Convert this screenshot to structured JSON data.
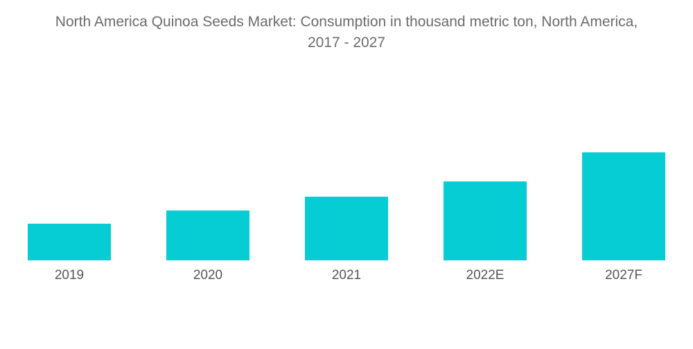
{
  "header": {
    "title_line1": "North America Quinoa Seeds Market: Consumption in thousand metric ton, North America,",
    "title_line2": "2017 - 2027"
  },
  "colors": {
    "bar": "#06CDD4",
    "title_text": "#6B6B6B",
    "label_text": "#555555",
    "background": "#FFFFFF"
  },
  "chart_data": {
    "type": "bar",
    "title": "North America Quinoa Seeds Market: Consumption in thousand metric ton, North America, 2017 - 2027",
    "categories": [
      "2019",
      "2020",
      "2021",
      "2022E",
      "2027F"
    ],
    "values": [
      34,
      46,
      59,
      73,
      100
    ],
    "value_note": "No numeric axis, gridlines or data labels are shown in the image; values are bar heights expressed as percent of the tallest bar (2027F = 100), estimated from pixels.",
    "xlabel": "",
    "ylabel": "",
    "ylim": [
      0,
      100
    ],
    "grid": false,
    "legend": false,
    "bar_color": "#06CDD4"
  }
}
